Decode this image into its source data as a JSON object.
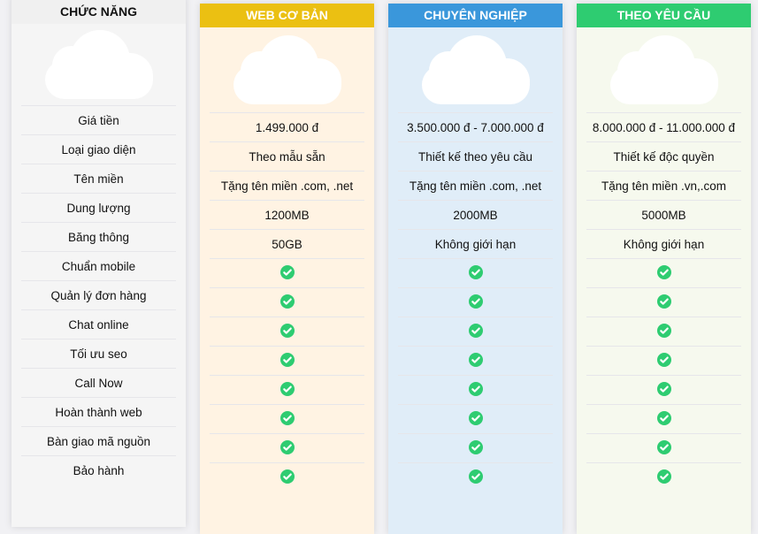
{
  "features": {
    "title": "CHỨC NĂNG",
    "items": [
      "Giá tiền",
      "Loại giao diện",
      "Tên miền",
      "Dung lượng",
      "Băng thông",
      "Chuẩn mobile",
      "Quản lý đơn hàng",
      "Chat online",
      "Tối ưu seo",
      "Call Now",
      "Hoàn thành web",
      "Bàn giao mã nguồn",
      "Bảo hành"
    ]
  },
  "plans": [
    {
      "title": "WEB CƠ BẢN",
      "color": "#ebc012",
      "bg": "#fff3e3",
      "values": [
        "1.499.000 đ",
        "Theo mẫu sẵn",
        "Tặng tên miền .com, .net",
        "1200MB",
        "50GB"
      ]
    },
    {
      "title": "CHUYÊN NGHIỆP",
      "color": "#3a97db",
      "bg": "#e0edf8",
      "values": [
        "3.500.000 đ - 7.000.000 đ",
        "Thiết kế theo yêu cầu",
        "Tặng tên miền .com, .net",
        "2000MB",
        "Không giới hạn"
      ]
    },
    {
      "title": "THEO YÊU CẦU",
      "color": "#2ecc71",
      "bg": "#f6f9ee",
      "values": [
        "8.000.000 đ - 11.000.000 đ",
        "Thiết kế độc quyền",
        "Tặng tên miền .vn,.com",
        "5000MB",
        "Không giới hạn"
      ]
    }
  ],
  "check_icon": {
    "name": "check-circle-icon",
    "color": "#2ecc71"
  }
}
